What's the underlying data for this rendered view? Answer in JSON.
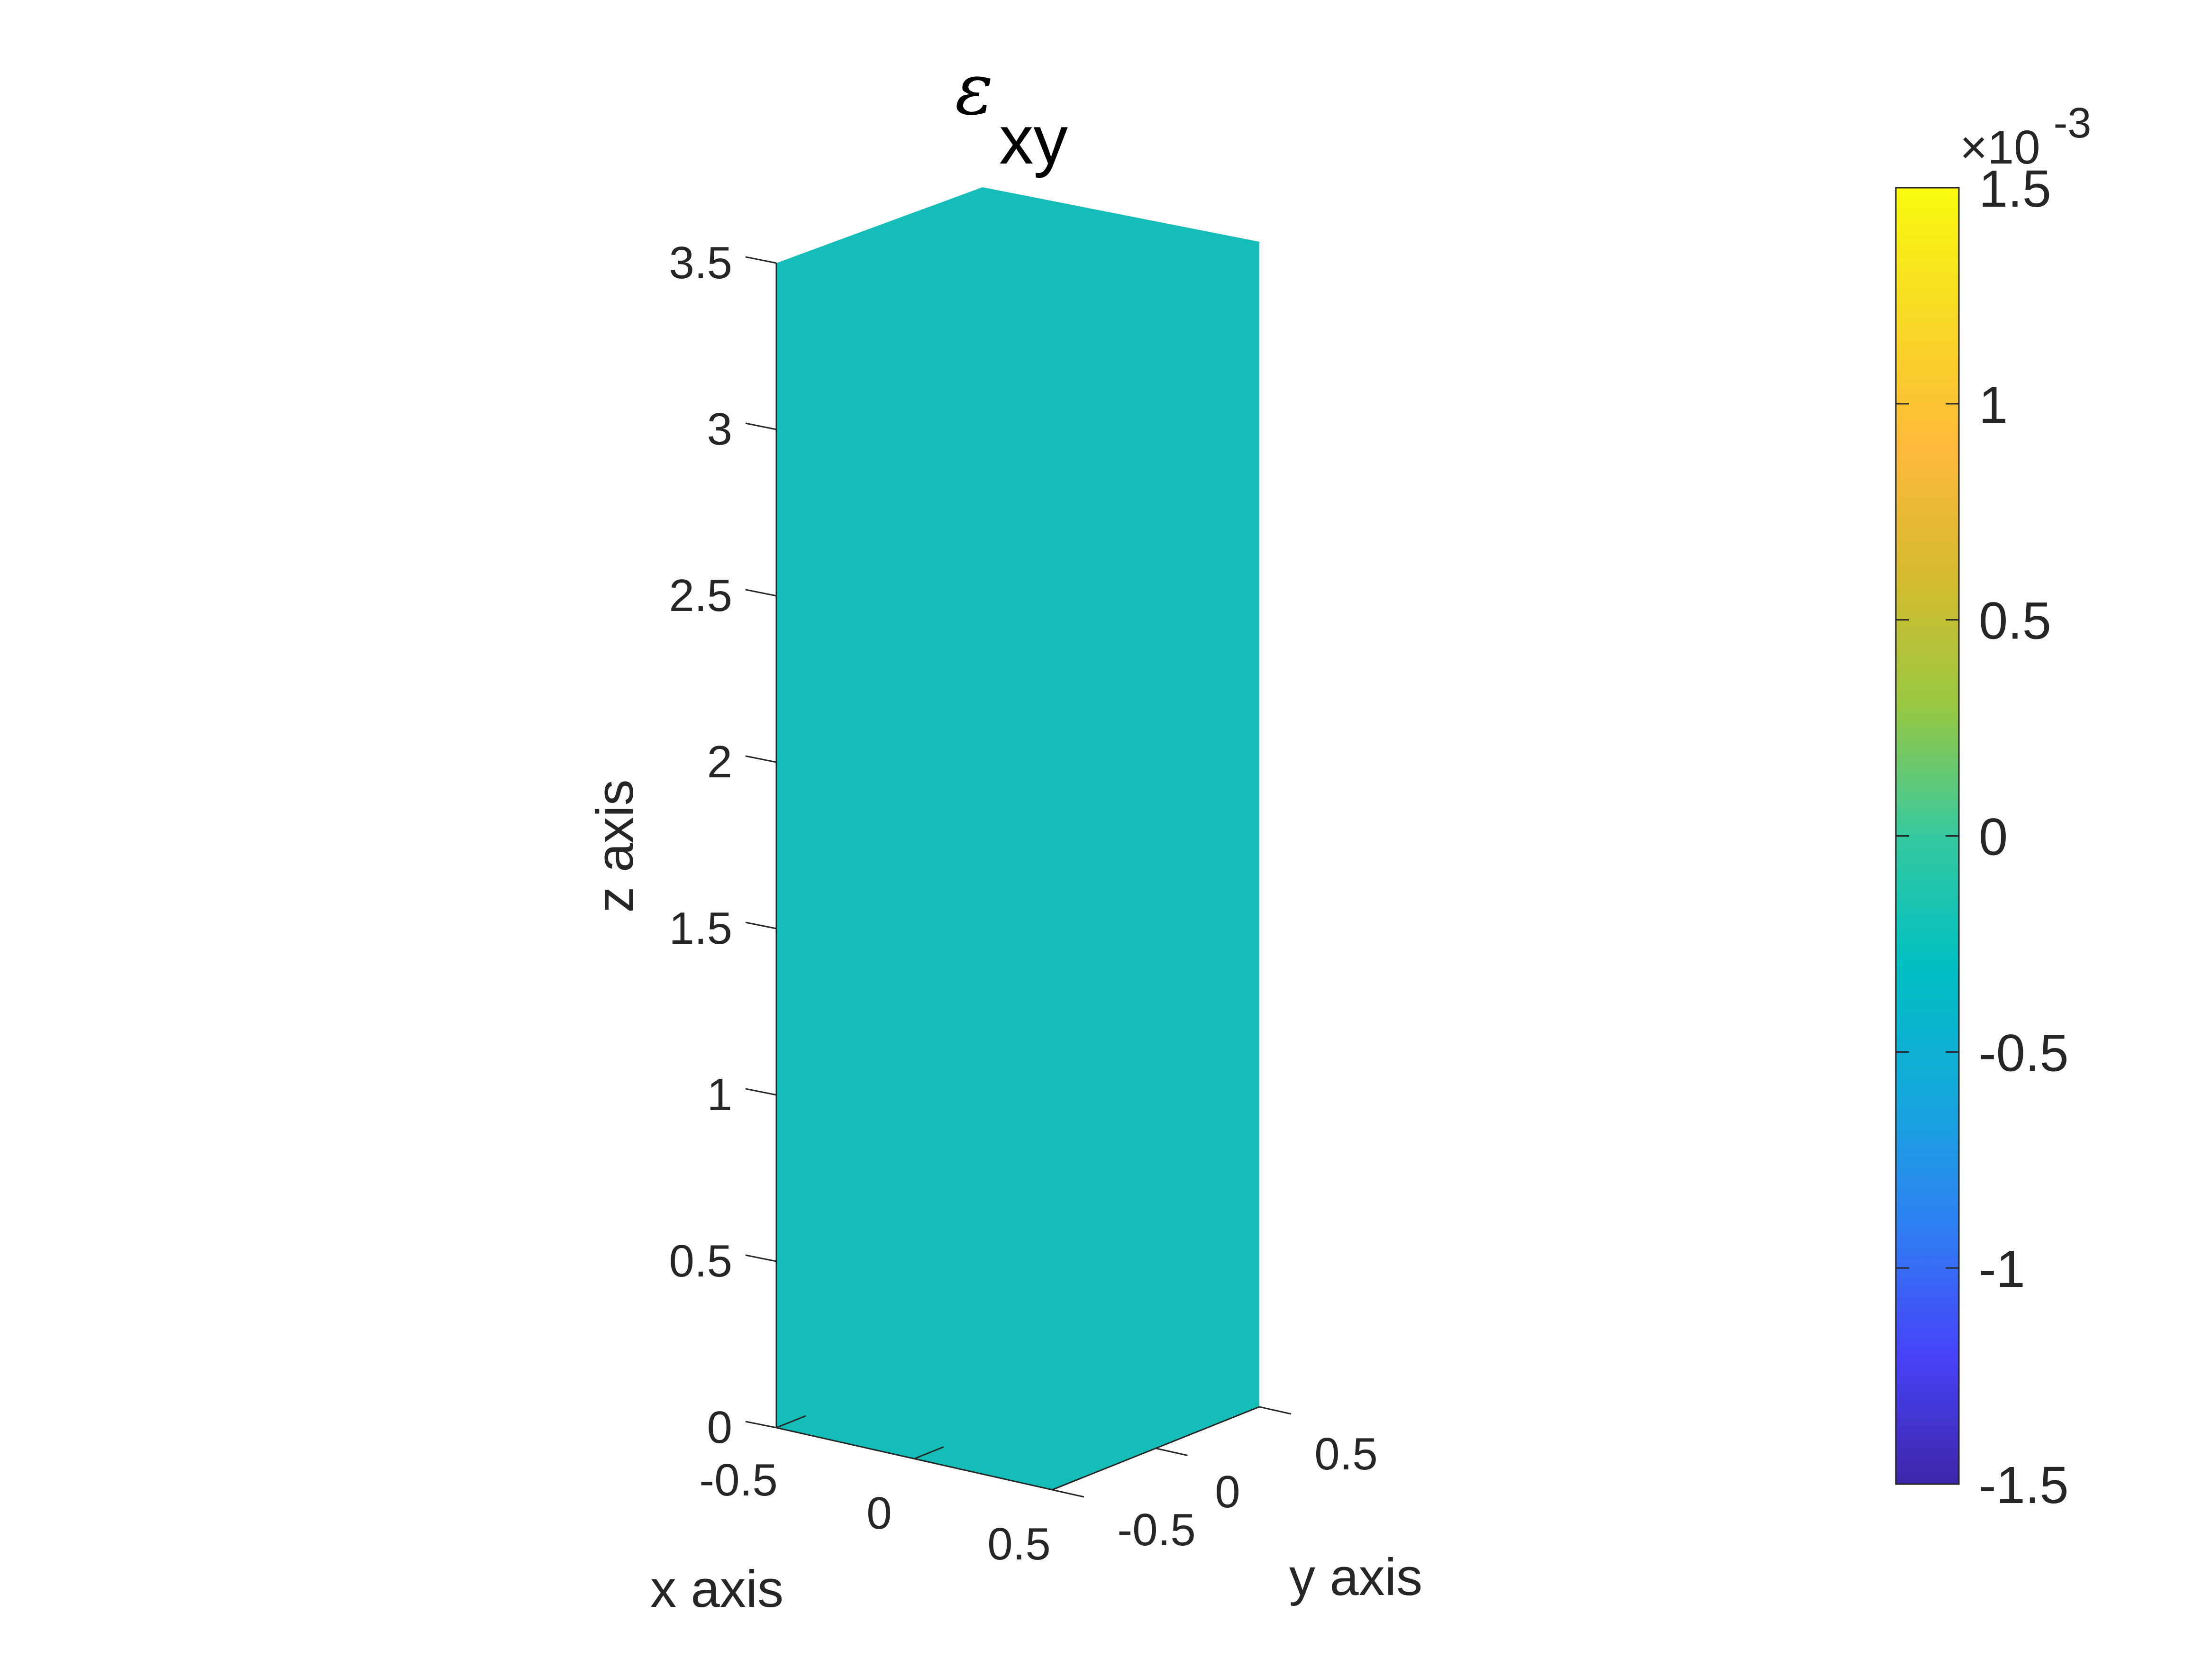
{
  "chart_data": {
    "type": "surface3d",
    "title_symbol": "ε",
    "title_subscript": "xy",
    "xlabel": "x axis",
    "ylabel": "y axis",
    "zlabel": "z axis",
    "x_ticks": [
      "-0.5",
      "0",
      "0.5"
    ],
    "y_ticks": [
      "-0.5",
      "0",
      "0.5"
    ],
    "z_ticks": [
      "0",
      "0.5",
      "1",
      "1.5",
      "2",
      "2.5",
      "3",
      "3.5"
    ],
    "xlim": [
      -0.5,
      0.5
    ],
    "ylim": [
      -0.5,
      0.5
    ],
    "zlim": [
      0,
      3.5
    ],
    "surface_value": 0,
    "surface_color": "#14BDB7",
    "colorbar": {
      "ticks": [
        "1.5",
        "1",
        "0.5",
        "0",
        "-0.5",
        "-1",
        "-1.5"
      ],
      "range": [
        -1.5,
        1.5
      ],
      "exponent_prefix": "×10",
      "exponent": "-3",
      "colormap": [
        "#3E26A8",
        "#4743F9",
        "#2F80F2",
        "#15A9DC",
        "#01BFC2",
        "#36C99F",
        "#98C842",
        "#D6BB2E",
        "#FEBA3A",
        "#F8D926",
        "#F9FB0E"
      ]
    }
  }
}
